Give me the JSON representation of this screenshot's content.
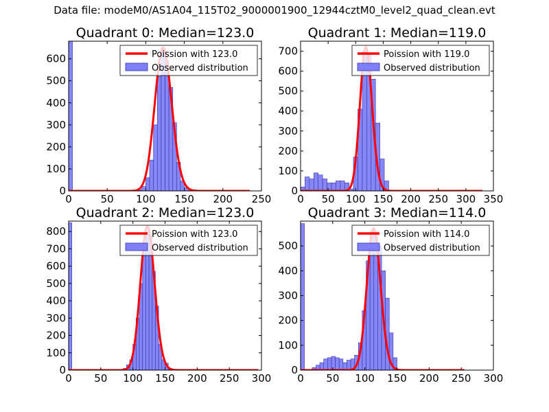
{
  "figure_title": "Data file: modeM0/AS1A04_115T02_9000001900_12944cztM0_level2_quad_clean.evt",
  "colors": {
    "bar_fill": "#7f7ff7",
    "bar_edge": "#3333aa",
    "curve": "#ff0000"
  },
  "chart_data": [
    {
      "type": "bar",
      "title": "Quadrant 0: Median=123.0",
      "xlim": [
        0,
        250
      ],
      "ylim": [
        0,
        680
      ],
      "xticks": [
        "0",
        "50",
        "100",
        "150",
        "200",
        "250"
      ],
      "yticks": [
        "0",
        "100",
        "200",
        "300",
        "400",
        "500",
        "600"
      ],
      "xtick_values": [
        0,
        50,
        100,
        150,
        200,
        250
      ],
      "ytick_values": [
        0,
        100,
        200,
        300,
        400,
        500,
        600
      ],
      "legend": {
        "placement": "top-right",
        "curve_label": "Poission with 123.0",
        "hist_label": "Observed distribution"
      },
      "bins_x": [
        0,
        5,
        90,
        95,
        100,
        105,
        110,
        115,
        120,
        125,
        130,
        135,
        140,
        145,
        150,
        155
      ],
      "bin_width": 5,
      "values": [
        680,
        0,
        5,
        20,
        60,
        140,
        300,
        520,
        650,
        590,
        470,
        310,
        130,
        45,
        15,
        2
      ],
      "curve": {
        "lambda": 123.0,
        "peak": 650,
        "x_range": [
          0,
          235
        ]
      }
    },
    {
      "type": "bar",
      "title": "Quadrant 1: Median=119.0",
      "xlim": [
        0,
        350
      ],
      "ylim": [
        0,
        750
      ],
      "xticks": [
        "0",
        "50",
        "100",
        "150",
        "200",
        "250",
        "300",
        "350"
      ],
      "yticks": [
        "0",
        "100",
        "200",
        "300",
        "400",
        "500",
        "600",
        "700"
      ],
      "xtick_values": [
        0,
        50,
        100,
        150,
        200,
        250,
        300,
        350
      ],
      "ytick_values": [
        0,
        100,
        200,
        300,
        400,
        500,
        600,
        700
      ],
      "legend": {
        "placement": "top-right",
        "curve_label": "Poission with 119.0",
        "hist_label": "Observed distribution"
      },
      "bins_x": [
        0,
        8,
        16,
        24,
        32,
        40,
        48,
        56,
        64,
        72,
        80,
        88,
        96,
        104,
        112,
        120,
        128,
        136,
        144,
        152
      ],
      "bin_width": 8,
      "values": [
        20,
        70,
        60,
        90,
        80,
        60,
        40,
        40,
        50,
        50,
        40,
        10,
        170,
        410,
        700,
        690,
        560,
        340,
        160,
        50
      ],
      "curve": {
        "lambda": 119.0,
        "peak": 720,
        "x_range": [
          0,
          330
        ]
      }
    },
    {
      "type": "bar",
      "title": "Quadrant 2: Median=123.0",
      "xlim": [
        0,
        300
      ],
      "ylim": [
        0,
        860
      ],
      "xticks": [
        "0",
        "50",
        "100",
        "150",
        "200",
        "250",
        "300"
      ],
      "yticks": [
        "0",
        "100",
        "200",
        "300",
        "400",
        "500",
        "600",
        "700",
        "800"
      ],
      "xtick_values": [
        0,
        50,
        100,
        150,
        200,
        250,
        300
      ],
      "ytick_values": [
        0,
        100,
        200,
        300,
        400,
        500,
        600,
        700,
        800
      ],
      "legend": {
        "placement": "top-right",
        "curve_label": "Poission with 123.0",
        "hist_label": "Observed distribution"
      },
      "bins_x": [
        0,
        5,
        85,
        90,
        95,
        100,
        105,
        110,
        115,
        120,
        125,
        130,
        135,
        140,
        145,
        150,
        155
      ],
      "bin_width": 5,
      "values": [
        850,
        0,
        10,
        30,
        60,
        150,
        300,
        500,
        730,
        810,
        780,
        570,
        370,
        150,
        60,
        40,
        10
      ],
      "curve": {
        "lambda": 123.0,
        "peak": 830,
        "x_range": [
          0,
          295
        ]
      }
    },
    {
      "type": "bar",
      "title": "Quadrant 3: Median=114.0",
      "xlim": [
        0,
        300
      ],
      "ylim": [
        0,
        600
      ],
      "xticks": [
        "0",
        "50",
        "100",
        "150",
        "200",
        "250",
        "300"
      ],
      "yticks": [
        "0",
        "100",
        "200",
        "300",
        "400",
        "500"
      ],
      "xtick_values": [
        0,
        50,
        100,
        150,
        200,
        250,
        300
      ],
      "ytick_values": [
        0,
        100,
        200,
        300,
        400,
        500
      ],
      "legend": {
        "placement": "top-right",
        "curve_label": "Poission with 114.0",
        "hist_label": "Observed distribution"
      },
      "bins_x": [
        0,
        6,
        18,
        24,
        30,
        36,
        42,
        48,
        54,
        60,
        66,
        72,
        78,
        84,
        90,
        96,
        102,
        108,
        114,
        120,
        126,
        132,
        138,
        144
      ],
      "bin_width": 6,
      "values": [
        590,
        0,
        10,
        20,
        30,
        45,
        50,
        55,
        50,
        45,
        30,
        40,
        45,
        60,
        110,
        240,
        440,
        560,
        560,
        500,
        400,
        290,
        150,
        50
      ],
      "curve": {
        "lambda": 114.0,
        "peak": 570,
        "x_range": [
          0,
          255
        ]
      }
    }
  ]
}
